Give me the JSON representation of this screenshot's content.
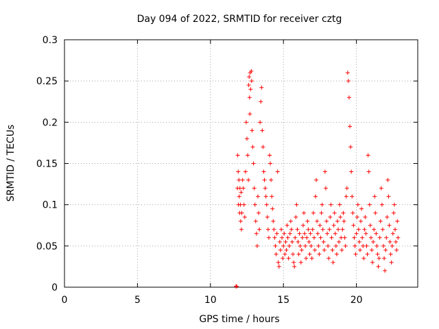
{
  "chart_data": {
    "type": "scatter",
    "title": "Day 094 of 2022, SRMTID for receiver cztg",
    "xlabel": "GPS time / hours",
    "ylabel": "SRMTID / TECUs",
    "xlim": [
      0,
      24.2
    ],
    "ylim": [
      0,
      0.3
    ],
    "xticks": [
      0,
      5,
      10,
      15,
      20
    ],
    "xtick_labels": [
      "0",
      "5",
      "10",
      "15",
      "20"
    ],
    "yticks": [
      0,
      0.05,
      0.1,
      0.15,
      0.2,
      0.25,
      0.3
    ],
    "ytick_labels": [
      "0",
      "0.05",
      "0.1",
      "0.15",
      "0.2",
      "0.25",
      "0.3"
    ],
    "grid": true,
    "marker": "+",
    "series": [
      {
        "color": "#ff0000",
        "points": [
          [
            11.75,
            0.001
          ],
          [
            11.8,
            0.001
          ],
          [
            11.85,
            0.12
          ],
          [
            11.87,
            0.16
          ],
          [
            11.9,
            0.14
          ],
          [
            11.92,
            0.1
          ],
          [
            11.95,
            0.13
          ],
          [
            11.97,
            0.11
          ],
          [
            12.0,
            0.09
          ],
          [
            12.02,
            0.12
          ],
          [
            12.05,
            0.1
          ],
          [
            12.07,
            0.08
          ],
          [
            12.1,
            0.115
          ],
          [
            12.12,
            0.07
          ],
          [
            12.15,
            0.09
          ],
          [
            12.2,
            0.13
          ],
          [
            12.25,
            0.12
          ],
          [
            12.3,
            0.1
          ],
          [
            12.35,
            0.085
          ],
          [
            12.4,
            0.14
          ],
          [
            12.45,
            0.2
          ],
          [
            12.5,
            0.18
          ],
          [
            12.55,
            0.16
          ],
          [
            12.6,
            0.13
          ],
          [
            12.62,
            0.245
          ],
          [
            12.65,
            0.255
          ],
          [
            12.68,
            0.23
          ],
          [
            12.7,
            0.21
          ],
          [
            12.72,
            0.26
          ],
          [
            12.75,
            0.24
          ],
          [
            12.8,
            0.262
          ],
          [
            12.82,
            0.25
          ],
          [
            12.85,
            0.19
          ],
          [
            12.9,
            0.17
          ],
          [
            12.95,
            0.15
          ],
          [
            13.0,
            0.12
          ],
          [
            13.05,
            0.1
          ],
          [
            13.1,
            0.08
          ],
          [
            13.15,
            0.065
          ],
          [
            13.2,
            0.05
          ],
          [
            13.25,
            0.11
          ],
          [
            13.3,
            0.09
          ],
          [
            13.35,
            0.07
          ],
          [
            13.4,
            0.2
          ],
          [
            13.45,
            0.225
          ],
          [
            13.5,
            0.242
          ],
          [
            13.55,
            0.19
          ],
          [
            13.6,
            0.17
          ],
          [
            13.65,
            0.14
          ],
          [
            13.7,
            0.13
          ],
          [
            13.75,
            0.12
          ],
          [
            13.8,
            0.11
          ],
          [
            13.85,
            0.1
          ],
          [
            13.9,
            0.085
          ],
          [
            13.95,
            0.07
          ],
          [
            14.0,
            0.06
          ],
          [
            14.05,
            0.16
          ],
          [
            14.1,
            0.15
          ],
          [
            14.15,
            0.13
          ],
          [
            14.2,
            0.11
          ],
          [
            14.25,
            0.095
          ],
          [
            14.3,
            0.08
          ],
          [
            14.35,
            0.07
          ],
          [
            14.4,
            0.06
          ],
          [
            14.45,
            0.05
          ],
          [
            14.5,
            0.04
          ],
          [
            14.55,
            0.065
          ],
          [
            14.6,
            0.14
          ],
          [
            14.65,
            0.03
          ],
          [
            14.7,
            0.025
          ],
          [
            14.75,
            0.055
          ],
          [
            14.8,
            0.045
          ],
          [
            14.85,
            0.07
          ],
          [
            14.9,
            0.06
          ],
          [
            14.95,
            0.035
          ],
          [
            15.0,
            0.05
          ],
          [
            15.05,
            0.065
          ],
          [
            15.1,
            0.04
          ],
          [
            15.15,
            0.055
          ],
          [
            15.2,
            0.045
          ],
          [
            15.25,
            0.075
          ],
          [
            15.3,
            0.06
          ],
          [
            15.35,
            0.035
          ],
          [
            15.4,
            0.05
          ],
          [
            15.45,
            0.065
          ],
          [
            15.5,
            0.08
          ],
          [
            15.55,
            0.07
          ],
          [
            15.6,
            0.055
          ],
          [
            15.65,
            0.04
          ],
          [
            15.7,
            0.03
          ],
          [
            15.75,
            0.025
          ],
          [
            15.8,
            0.06
          ],
          [
            15.85,
            0.085
          ],
          [
            15.9,
            0.1
          ],
          [
            15.95,
            0.07
          ],
          [
            16.0,
            0.055
          ],
          [
            16.05,
            0.04
          ],
          [
            16.1,
            0.065
          ],
          [
            16.15,
            0.05
          ],
          [
            16.2,
            0.03
          ],
          [
            16.25,
            0.045
          ],
          [
            16.3,
            0.06
          ],
          [
            16.35,
            0.075
          ],
          [
            16.4,
            0.09
          ],
          [
            16.45,
            0.065
          ],
          [
            16.5,
            0.05
          ],
          [
            16.55,
            0.035
          ],
          [
            16.6,
            0.06
          ],
          [
            16.65,
            0.08
          ],
          [
            16.7,
            0.07
          ],
          [
            16.75,
            0.055
          ],
          [
            16.8,
            0.04
          ],
          [
            16.85,
            0.065
          ],
          [
            16.9,
            0.05
          ],
          [
            16.95,
            0.035
          ],
          [
            17.0,
            0.07
          ],
          [
            17.05,
            0.09
          ],
          [
            17.1,
            0.06
          ],
          [
            17.15,
            0.045
          ],
          [
            17.2,
            0.11
          ],
          [
            17.25,
            0.13
          ],
          [
            17.3,
            0.08
          ],
          [
            17.35,
            0.065
          ],
          [
            17.4,
            0.05
          ],
          [
            17.45,
            0.04
          ],
          [
            17.5,
            0.075
          ],
          [
            17.55,
            0.06
          ],
          [
            17.6,
            0.09
          ],
          [
            17.65,
            0.1
          ],
          [
            17.7,
            0.07
          ],
          [
            17.75,
            0.055
          ],
          [
            17.8,
            0.045
          ],
          [
            17.85,
            0.14
          ],
          [
            17.9,
            0.12
          ],
          [
            17.95,
            0.08
          ],
          [
            18.0,
            0.065
          ],
          [
            18.05,
            0.05
          ],
          [
            18.1,
            0.035
          ],
          [
            18.15,
            0.07
          ],
          [
            18.2,
            0.085
          ],
          [
            18.25,
            0.1
          ],
          [
            18.3,
            0.06
          ],
          [
            18.35,
            0.045
          ],
          [
            18.4,
            0.03
          ],
          [
            18.45,
            0.075
          ],
          [
            18.5,
            0.09
          ],
          [
            18.55,
            0.065
          ],
          [
            18.6,
            0.05
          ],
          [
            18.65,
            0.04
          ],
          [
            18.7,
            0.08
          ],
          [
            18.75,
            0.07
          ],
          [
            18.8,
            0.055
          ],
          [
            18.85,
            0.1
          ],
          [
            18.9,
            0.085
          ],
          [
            18.95,
            0.06
          ],
          [
            19.0,
            0.045
          ],
          [
            19.05,
            0.07
          ],
          [
            19.1,
            0.09
          ],
          [
            19.15,
            0.08
          ],
          [
            19.2,
            0.06
          ],
          [
            19.25,
            0.05
          ],
          [
            19.3,
            0.11
          ],
          [
            19.35,
            0.12
          ],
          [
            19.4,
            0.26
          ],
          [
            19.45,
            0.25
          ],
          [
            19.5,
            0.23
          ],
          [
            19.55,
            0.195
          ],
          [
            19.6,
            0.17
          ],
          [
            19.65,
            0.14
          ],
          [
            19.7,
            0.11
          ],
          [
            19.75,
            0.09
          ],
          [
            19.8,
            0.075
          ],
          [
            19.85,
            0.06
          ],
          [
            19.9,
            0.05
          ],
          [
            19.95,
            0.04
          ],
          [
            20.0,
            0.065
          ],
          [
            20.05,
            0.085
          ],
          [
            20.1,
            0.1
          ],
          [
            20.15,
            0.07
          ],
          [
            20.2,
            0.055
          ],
          [
            20.25,
            0.045
          ],
          [
            20.3,
            0.08
          ],
          [
            20.35,
            0.095
          ],
          [
            20.4,
            0.06
          ],
          [
            20.45,
            0.05
          ],
          [
            20.5,
            0.035
          ],
          [
            20.55,
            0.07
          ],
          [
            20.6,
            0.085
          ],
          [
            20.65,
            0.065
          ],
          [
            20.7,
            0.05
          ],
          [
            20.75,
            0.04
          ],
          [
            20.8,
            0.16
          ],
          [
            20.85,
            0.14
          ],
          [
            20.9,
            0.1
          ],
          [
            20.95,
            0.075
          ],
          [
            21.0,
            0.06
          ],
          [
            21.05,
            0.045
          ],
          [
            21.1,
            0.03
          ],
          [
            21.15,
            0.055
          ],
          [
            21.2,
            0.07
          ],
          [
            21.25,
            0.11
          ],
          [
            21.3,
            0.09
          ],
          [
            21.35,
            0.065
          ],
          [
            21.4,
            0.05
          ],
          [
            21.45,
            0.04
          ],
          [
            21.5,
            0.025
          ],
          [
            21.55,
            0.035
          ],
          [
            21.6,
            0.06
          ],
          [
            21.65,
            0.08
          ],
          [
            21.7,
            0.12
          ],
          [
            21.75,
            0.1
          ],
          [
            21.8,
            0.07
          ],
          [
            21.85,
            0.05
          ],
          [
            21.9,
            0.035
          ],
          [
            21.95,
            0.02
          ],
          [
            22.0,
            0.045
          ],
          [
            22.05,
            0.06
          ],
          [
            22.1,
            0.085
          ],
          [
            22.15,
            0.13
          ],
          [
            22.2,
            0.11
          ],
          [
            22.25,
            0.075
          ],
          [
            22.3,
            0.055
          ],
          [
            22.35,
            0.04
          ],
          [
            22.4,
            0.03
          ],
          [
            22.45,
            0.05
          ],
          [
            22.5,
            0.065
          ],
          [
            22.55,
            0.09
          ],
          [
            22.6,
            0.1
          ],
          [
            22.65,
            0.07
          ],
          [
            22.7,
            0.055
          ],
          [
            22.75,
            0.045
          ],
          [
            22.8,
            0.08
          ],
          [
            22.85,
            0.06
          ]
        ]
      }
    ]
  }
}
